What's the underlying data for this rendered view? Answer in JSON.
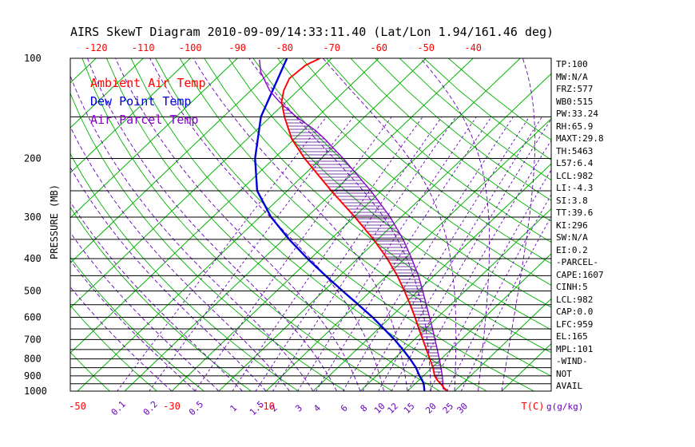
{
  "title": "AIRS SkewT Diagram 2010-09-09/14:33:11.40 (Lat/Lon 1.94/161.46 deg)",
  "colors": {
    "isotherm_green": "#00b300",
    "grid_violet": "#6600bb",
    "ambient_red": "#ff0000",
    "dewpoint_blue": "#0000dd",
    "parcel_purple": "#8800cc",
    "hatch": "#4b0082",
    "axis_black": "#000000"
  },
  "legend": {
    "items": [
      {
        "label": "Ambient Air Temp",
        "color": "#ff0000"
      },
      {
        "label": "Dew Point Temp",
        "color": "#0000dd"
      },
      {
        "label": "Air Parcel Temp",
        "color": "#8800cc"
      }
    ]
  },
  "stats": {
    "items": [
      "TP:100",
      "MW:N/A",
      "FRZ:577",
      "WB0:515",
      "PW:33.24",
      "RH:65.9",
      "MAXT:29.8",
      "TH:5463",
      "L57:6.4",
      "LCL:982",
      "LI:-4.3",
      "SI:3.8",
      "TT:39.6",
      "KI:296",
      "SW:N/A",
      "EI:0.2",
      "-PARCEL-",
      "CAPE:1607",
      "CINH:5",
      "LCL:982",
      "CAP:0.0",
      "LFC:959",
      "EL:165",
      "MPL:101",
      "-WIND-",
      "NOT",
      "AVAIL"
    ]
  },
  "chart_data": {
    "type": "skewt-log-p",
    "pressure_axis": {
      "label": "PRESSURE (MB)",
      "ticks": [
        100,
        200,
        300,
        400,
        500,
        600,
        700,
        800,
        900,
        1000
      ],
      "range": [
        100,
        1000
      ],
      "scale": "log",
      "gridline_step_mb": 50
    },
    "temp_axis": {
      "unit_label": "T(C)",
      "top_ticks": [
        -120,
        -110,
        -100,
        -90,
        -80,
        -70,
        -60,
        -50,
        -40
      ],
      "bottom_ticks": [
        -50,
        -30,
        -10
      ],
      "step_c": 10
    },
    "mixing_axis": {
      "unit_label": "g(g/kg)",
      "ticks": [
        0.1,
        0.2,
        0.5,
        1,
        1.5,
        2,
        3,
        4,
        6,
        8,
        10,
        12,
        15,
        20,
        25,
        30
      ]
    },
    "grid": {
      "isotherms_c": {
        "start": -130,
        "end": 40,
        "step": 10
      },
      "dry_adiabats_k": {
        "start": 210,
        "end": 440,
        "step": 10
      },
      "moist_adiabats_c": {
        "start": -30,
        "end": 40,
        "step": 5
      }
    },
    "series": [
      {
        "name": "Ambient Air Temp",
        "key": "ambient",
        "color": "#ff0000",
        "points": [
          [
            1000,
            28.6
          ],
          [
            982,
            27.3
          ],
          [
            950,
            25.4
          ],
          [
            925,
            23.8
          ],
          [
            900,
            22.4
          ],
          [
            850,
            20.2
          ],
          [
            800,
            17.6
          ],
          [
            750,
            14.8
          ],
          [
            700,
            11.8
          ],
          [
            650,
            8.6
          ],
          [
            600,
            5.2
          ],
          [
            550,
            1.4
          ],
          [
            500,
            -2.9
          ],
          [
            450,
            -7.8
          ],
          [
            400,
            -13.7
          ],
          [
            350,
            -20.9
          ],
          [
            300,
            -29.8
          ],
          [
            250,
            -40.7
          ],
          [
            200,
            -53.5
          ],
          [
            175,
            -60.5
          ],
          [
            150,
            -67.0
          ],
          [
            135,
            -71.0
          ],
          [
            125,
            -73.0
          ],
          [
            115,
            -74.5
          ],
          [
            105,
            -74.0
          ],
          [
            100,
            -72.5
          ]
        ]
      },
      {
        "name": "Dew Point Temp",
        "key": "dewpoint",
        "color": "#0000dd",
        "points": [
          [
            1000,
            23.6
          ],
          [
            982,
            23.0
          ],
          [
            950,
            21.8
          ],
          [
            925,
            20.6
          ],
          [
            900,
            19.2
          ],
          [
            850,
            16.6
          ],
          [
            800,
            13.4
          ],
          [
            750,
            9.8
          ],
          [
            700,
            5.8
          ],
          [
            650,
            1.2
          ],
          [
            600,
            -3.8
          ],
          [
            550,
            -9.6
          ],
          [
            500,
            -16.0
          ],
          [
            450,
            -23.0
          ],
          [
            400,
            -30.6
          ],
          [
            350,
            -38.8
          ],
          [
            300,
            -47.6
          ],
          [
            250,
            -56.4
          ],
          [
            200,
            -64.0
          ],
          [
            150,
            -72.0
          ],
          [
            100,
            -79.5
          ]
        ]
      },
      {
        "name": "Air Parcel Temp",
        "key": "parcel",
        "color": "#8800cc",
        "points": [
          [
            1000,
            28.6
          ],
          [
            982,
            27.0
          ],
          [
            950,
            25.9
          ],
          [
            900,
            24.0
          ],
          [
            850,
            21.9
          ],
          [
            800,
            19.6
          ],
          [
            750,
            17.1
          ],
          [
            700,
            14.4
          ],
          [
            650,
            11.5
          ],
          [
            600,
            8.3
          ],
          [
            550,
            4.8
          ],
          [
            500,
            1.0
          ],
          [
            450,
            -3.3
          ],
          [
            400,
            -8.5
          ],
          [
            350,
            -14.6
          ],
          [
            300,
            -22.3
          ],
          [
            250,
            -32.3
          ],
          [
            200,
            -45.3
          ],
          [
            175,
            -53.5
          ],
          [
            165,
            -57.3
          ],
          [
            150,
            -64.5
          ],
          [
            135,
            -71.5
          ],
          [
            125,
            -76.0
          ],
          [
            110,
            -82.0
          ],
          [
            101,
            -85.0
          ]
        ]
      }
    ],
    "hatch": {
      "style": "horizontal-lines",
      "between": [
        "ambient",
        "parcel"
      ],
      "from_pressure_mb": 959,
      "to_pressure_mb": 140
    }
  }
}
